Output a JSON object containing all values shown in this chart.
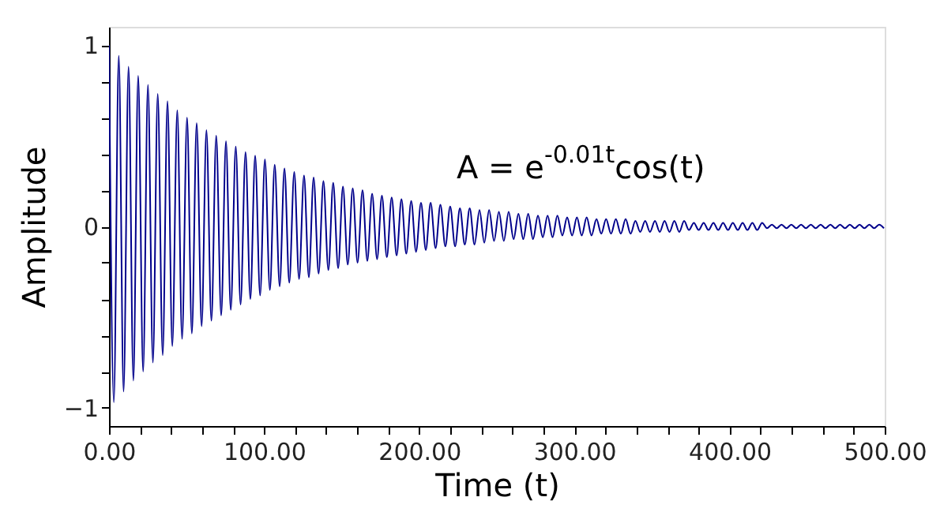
{
  "chart_data": {
    "type": "line",
    "xlabel": "Time (t)",
    "ylabel": "Amplitude",
    "annotations": [
      "A = e$^{-0.01t}$cos(t)"
    ],
    "xlim": [
      0,
      500
    ],
    "ylim": [
      -1.1,
      1.1
    ],
    "xticks": [
      {
        "value": 0,
        "label": "0.00"
      },
      {
        "value": 20,
        "label": null
      },
      {
        "value": 40,
        "label": null
      },
      {
        "value": 60,
        "label": null
      },
      {
        "value": 80,
        "label": null
      },
      {
        "value": 100,
        "label": "100.00"
      },
      {
        "value": 120,
        "label": null
      },
      {
        "value": 140,
        "label": null
      },
      {
        "value": 160,
        "label": null
      },
      {
        "value": 180,
        "label": null
      },
      {
        "value": 200,
        "label": "200.00"
      },
      {
        "value": 220,
        "label": null
      },
      {
        "value": 240,
        "label": null
      },
      {
        "value": 260,
        "label": null
      },
      {
        "value": 280,
        "label": null
      },
      {
        "value": 300,
        "label": "300.00"
      },
      {
        "value": 320,
        "label": null
      },
      {
        "value": 340,
        "label": null
      },
      {
        "value": 360,
        "label": null
      },
      {
        "value": 380,
        "label": null
      },
      {
        "value": 400,
        "label": "400.00"
      },
      {
        "value": 420,
        "label": null
      },
      {
        "value": 440,
        "label": null
      },
      {
        "value": 460,
        "label": null
      },
      {
        "value": 480,
        "label": null
      },
      {
        "value": 500,
        "label": "500.00"
      }
    ],
    "yticks": [
      {
        "value": -1,
        "label": "−1"
      },
      {
        "value": -0.8,
        "label": null
      },
      {
        "value": -0.6,
        "label": null
      },
      {
        "value": -0.4,
        "label": null
      },
      {
        "value": -0.2,
        "label": null
      },
      0,
      {
        "value": 0.2,
        "label": null
      },
      {
        "value": 0.4,
        "label": null
      },
      {
        "value": 0.6,
        "label": null
      },
      {
        "value": 0.8,
        "label": null
      },
      1
    ],
    "grid": false,
    "marker": "none",
    "line_style": "solid",
    "series": [
      {
        "color": "#00008b",
        "x": [
          0,
          3.1,
          6.3,
          9.4,
          12.6,
          15.7,
          18.8,
          22.0,
          25.1,
          28.3,
          31.4,
          34.6,
          37.7,
          40.8,
          44.0,
          47.1,
          50.3,
          53.4,
          56.5,
          59.7,
          62.8,
          66.0,
          69.1,
          72.3,
          75.4,
          78.5,
          81.7,
          84.8,
          88.0,
          91.1,
          94.2,
          97.4,
          100.5,
          103.7,
          106.8,
          110.0,
          113.1,
          116.2,
          119.4,
          122.5,
          125.7,
          128.8,
          131.9,
          135.1,
          138.2,
          141.4,
          144.5,
          147.7,
          150.8,
          153.9,
          157.1,
          160.2,
          163.4,
          166.5,
          169.6,
          172.8,
          175.9,
          179.1,
          182.2,
          185.4,
          188.5,
          191.6,
          194.8,
          197.9,
          201.1,
          204.2,
          207.3,
          210.5,
          213.6,
          216.8,
          219.9,
          223.1,
          226.2,
          229.3,
          232.5,
          235.6,
          238.8,
          241.9,
          245.0,
          248.2,
          251.3,
          254.5,
          257.6,
          260.8,
          263.9,
          267.0,
          270.2,
          273.3,
          276.5,
          279.6,
          282.7,
          285.9,
          289.0,
          292.2,
          295.3,
          298.5,
          301.6,
          304.7,
          307.9,
          311.0,
          314.2,
          317.3,
          320.4,
          323.6,
          326.7,
          329.9,
          333.0,
          336.2,
          339.3,
          342.4,
          345.6,
          348.7,
          351.9,
          355.0,
          358.1,
          361.3,
          364.4,
          367.6,
          370.7,
          373.8,
          377.0,
          380.1,
          383.3,
          386.4,
          389.6,
          392.7,
          395.8,
          399.0,
          402.1,
          405.3,
          408.4,
          411.5,
          414.7,
          417.8,
          421.0,
          424.1,
          427.3,
          430.4,
          433.5,
          436.7,
          439.8,
          443.0,
          446.1,
          449.2,
          452.4,
          455.5,
          458.7,
          461.8,
          465.0,
          468.1,
          471.2,
          474.4,
          477.5,
          480.7,
          483.8,
          486.9,
          490.1,
          493.2,
          496.4,
          499.5
        ],
        "values": [
          1.0,
          -0.97,
          0.94,
          -0.91,
          0.88,
          -0.85,
          0.83,
          -0.8,
          0.78,
          -0.75,
          0.73,
          -0.71,
          0.69,
          -0.66,
          0.64,
          -0.62,
          0.6,
          -0.59,
          0.57,
          -0.55,
          0.53,
          -0.52,
          0.5,
          -0.49,
          0.47,
          -0.46,
          0.44,
          -0.43,
          0.41,
          -0.4,
          0.39,
          -0.38,
          0.37,
          -0.35,
          0.34,
          -0.33,
          0.32,
          -0.31,
          0.3,
          -0.29,
          0.28,
          -0.28,
          0.27,
          -0.26,
          0.25,
          -0.24,
          0.24,
          -0.23,
          0.22,
          -0.21,
          0.21,
          -0.2,
          0.2,
          -0.19,
          0.18,
          -0.18,
          0.17,
          -0.17,
          0.16,
          -0.16,
          0.15,
          -0.15,
          0.14,
          -0.14,
          0.13,
          -0.13,
          0.13,
          -0.12,
          0.12,
          -0.11,
          0.11,
          -0.11,
          0.1,
          -0.1,
          0.1,
          -0.1,
          0.09,
          -0.09,
          0.09,
          -0.08,
          0.08,
          -0.08,
          0.08,
          -0.07,
          0.07,
          -0.07,
          0.07,
          -0.07,
          0.06,
          -0.06,
          0.06,
          -0.06,
          0.06,
          -0.05,
          0.05,
          -0.05,
          0.05,
          -0.05,
          0.05,
          -0.05,
          0.04,
          -0.04,
          0.04,
          -0.04,
          0.04,
          -0.04,
          0.04,
          -0.04,
          0.03,
          -0.03,
          0.03,
          -0.03,
          0.03,
          -0.03,
          0.03,
          -0.03,
          0.03,
          -0.03,
          0.03,
          -0.02,
          0.02,
          -0.02,
          0.02,
          -0.02,
          0.02,
          -0.02,
          0.02,
          -0.02,
          0.02,
          -0.02,
          0.02,
          -0.02,
          0.02,
          -0.02,
          0.02,
          -0.01,
          0.01,
          -0.01,
          0.01,
          -0.01,
          0.01,
          -0.01,
          0.01,
          -0.01,
          0.01,
          -0.01,
          0.01,
          -0.01,
          0.01,
          -0.01,
          0.01,
          -0.01,
          0.01,
          -0.01,
          0.01,
          -0.01,
          0.01,
          -0.01,
          0.01,
          -0.01
        ]
      }
    ]
  }
}
